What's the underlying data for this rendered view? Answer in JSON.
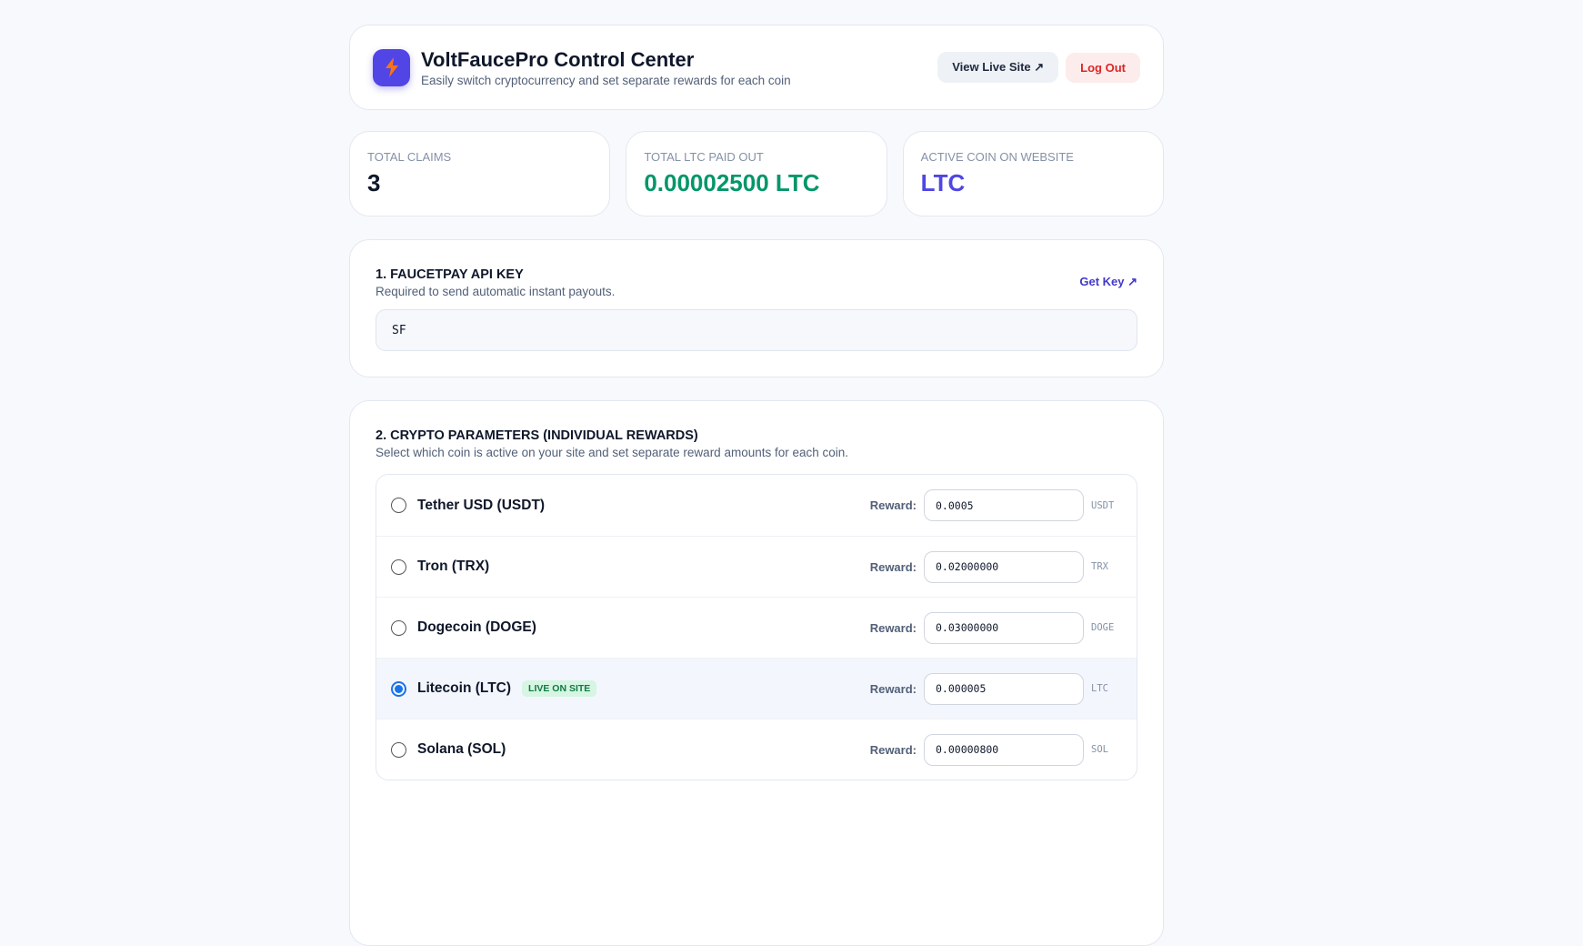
{
  "header": {
    "title": "VoltFaucePro Control Center",
    "subtitle": "Easily switch cryptocurrency and set separate rewards for each coin",
    "buttons": [
      "View Live Site ↗",
      "Log Out"
    ]
  },
  "stats": [
    {
      "label": "TOTAL CLAIMS",
      "value": "3"
    },
    {
      "label": "TOTAL LTC PAID OUT",
      "value": "0.00002500 LTC"
    },
    {
      "label": "ACTIVE COIN ON WEBSITE",
      "value": "LTC"
    }
  ],
  "api": {
    "title": "1. FAUCETPAY API KEY",
    "subtitle": "Required to send automatic instant payouts.",
    "link": "Get Key ↗",
    "input": "SF"
  },
  "crypto": {
    "title": "2. CRYPTO PARAMETERS (INDIVIDUAL REWARDS)",
    "subtitle": "Select which coin is active on your site and set separate reward amounts for each coin.",
    "reward_label": "Reward:",
    "coins": [
      {
        "name": "Tether USD (USDT)",
        "reward": "0.0005",
        "unit": "USDT"
      },
      {
        "name": "Tron (TRX)",
        "reward": "0.02000000",
        "unit": "TRX"
      },
      {
        "name": "Dogecoin (DOGE)",
        "reward": "0.03000000",
        "unit": "DOGE"
      },
      {
        "name": "Litecoin (LTC)",
        "badge": "LIVE ON SITE",
        "reward": "0.000005",
        "unit": "LTC"
      },
      {
        "name": "Solana (SOL)",
        "reward": "0.00000800",
        "unit": "SOL"
      }
    ]
  }
}
